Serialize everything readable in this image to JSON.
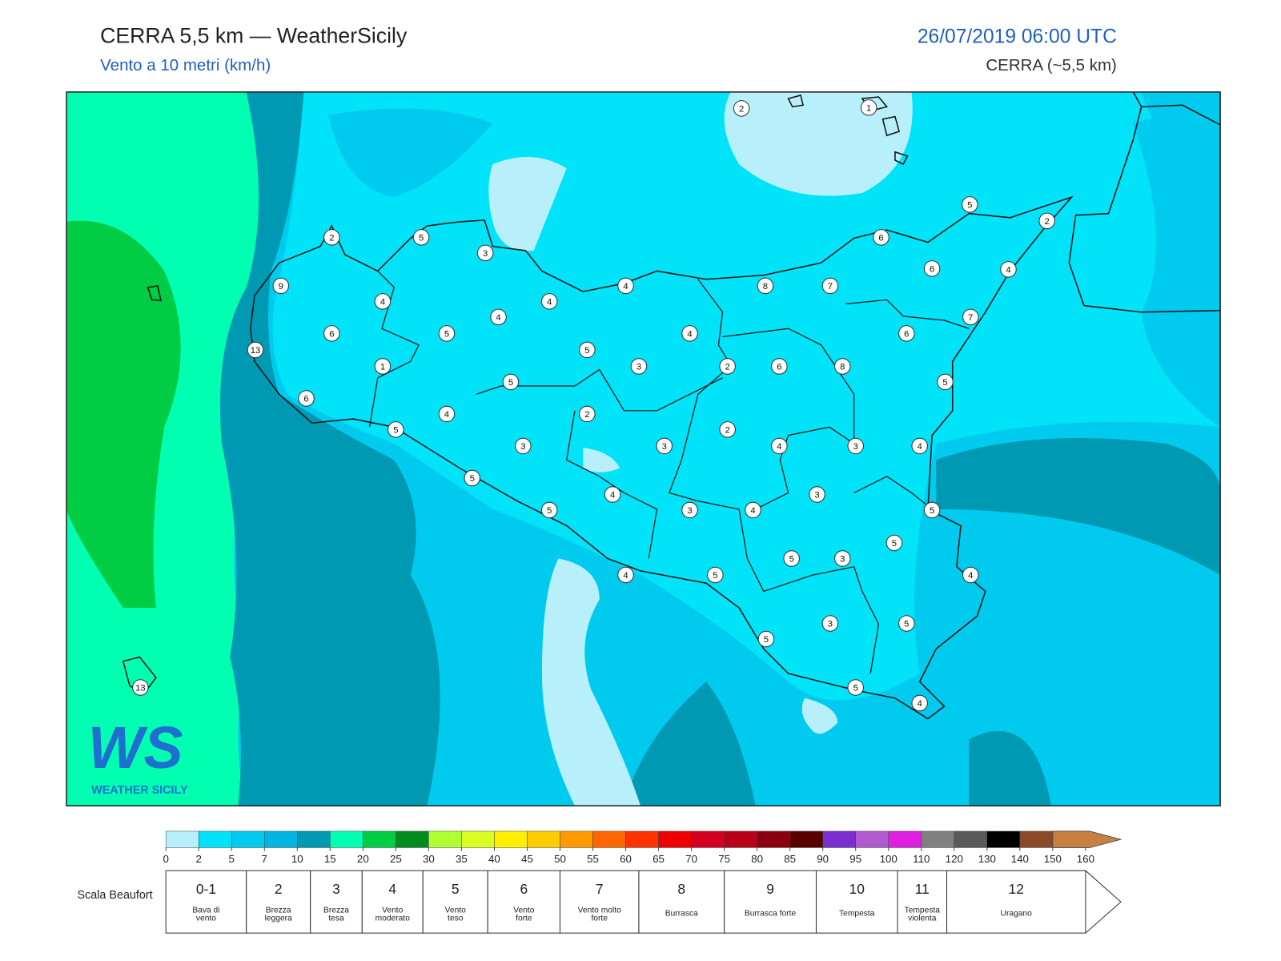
{
  "header": {
    "title": "CERRA 5,5 km — WeatherSicily",
    "subtitle": "Vento a 10 metri (km/h)",
    "datetime": "26/07/2019 06:00 UTC",
    "model": "CERRA (~5,5 km)"
  },
  "map": {
    "stations": [
      2,
      1,
      5,
      2,
      2,
      5,
      3,
      6,
      6,
      4,
      9,
      4,
      8,
      7,
      4,
      4,
      4,
      7,
      6,
      5,
      4,
      6,
      13,
      5,
      1,
      3,
      2,
      6,
      8,
      5,
      5,
      6,
      4,
      2,
      5,
      2,
      3,
      3,
      4,
      3,
      4,
      5,
      4,
      3,
      5,
      3,
      4,
      5,
      5,
      5,
      3,
      4,
      5,
      4,
      3,
      5,
      5,
      13,
      5,
      4
    ]
  },
  "logo": {
    "mark": "WS",
    "name": "WEATHER SICILY"
  },
  "legend": {
    "ticks": [
      0,
      2,
      5,
      7,
      10,
      15,
      20,
      25,
      30,
      35,
      40,
      45,
      50,
      55,
      60,
      65,
      70,
      75,
      80,
      85,
      90,
      95,
      100,
      110,
      120,
      130,
      140,
      150,
      160
    ],
    "colors": [
      "#b7f0fb",
      "#00e3f9",
      "#00cbef",
      "#00b6e0",
      "#0099b4",
      "#00ffb0",
      "#00cc44",
      "#008c1e",
      "#b0ff30",
      "#d8ff20",
      "#fff000",
      "#ffcc00",
      "#ff9900",
      "#ff6600",
      "#ff3300",
      "#ee0000",
      "#d40020",
      "#b80018",
      "#8b0010",
      "#5a0000",
      "#7b2fd0",
      "#b05ad0",
      "#e020e0",
      "#808080",
      "#5a5a5a",
      "#000000",
      "#8a4a2a",
      "#c88040"
    ]
  },
  "beaufort": {
    "title": "Scala Beaufort",
    "levels": [
      {
        "number": "0-1",
        "label": "Bava di vento"
      },
      {
        "number": "2",
        "label": "Brezza leggera"
      },
      {
        "number": "3",
        "label": "Brezza tesa"
      },
      {
        "number": "4",
        "label": "Vento moderato"
      },
      {
        "number": "5",
        "label": "Vento teso"
      },
      {
        "number": "6",
        "label": "Vento forte"
      },
      {
        "number": "7",
        "label": "Vento molto forte"
      },
      {
        "number": "8",
        "label": "Burrasca"
      },
      {
        "number": "9",
        "label": "Burrasca forte"
      },
      {
        "number": "10",
        "label": "Tempesta"
      },
      {
        "number": "11",
        "label": "Tempesta violenta"
      },
      {
        "number": "12",
        "label": "Uragano"
      }
    ]
  }
}
